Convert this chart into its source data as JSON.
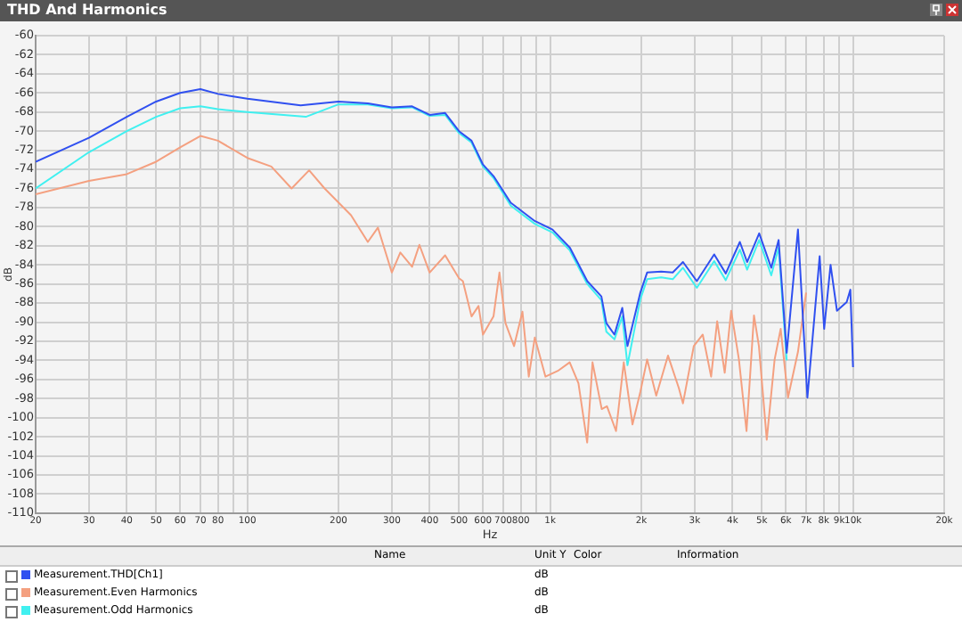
{
  "chart_data": {
    "type": "line",
    "title": "THD And Harmonics",
    "xlabel": "Hz",
    "ylabel": "dB",
    "log": "x",
    "grid": true,
    "legend": "bottom",
    "xlim": [
      20,
      20000
    ],
    "xticks": [
      20,
      30,
      40,
      50,
      60,
      70,
      80,
      {
        "value": 90,
        "label": null
      },
      100,
      200,
      300,
      400,
      500,
      600,
      700,
      800,
      {
        "value": 900,
        "label": null
      },
      {
        "value": 1000,
        "label": "1k"
      },
      {
        "value": 2000,
        "label": "2k"
      },
      {
        "value": 3000,
        "label": "3k"
      },
      {
        "value": 4000,
        "label": "4k"
      },
      {
        "value": 5000,
        "label": "5k"
      },
      {
        "value": 6000,
        "label": "6k"
      },
      {
        "value": 7000,
        "label": "7k"
      },
      {
        "value": 8000,
        "label": "8k"
      },
      {
        "value": 9000,
        "label": "9k"
      },
      {
        "value": 10000,
        "label": "10k"
      },
      {
        "value": 20000,
        "label": "20k"
      }
    ],
    "ylim": [
      -110,
      -60
    ],
    "yticks": [
      -110,
      -108,
      -106,
      -104,
      -102,
      -100,
      -98,
      -96,
      -94,
      -92,
      -90,
      -88,
      -86,
      -84,
      -82,
      -80,
      -78,
      -76,
      -74,
      -72,
      -70,
      -68,
      -66,
      -64,
      -62,
      -60
    ],
    "annotations": [
      "Name",
      "Unit Y",
      "Color",
      "Information",
      "dB"
    ],
    "series": [
      {
        "name": "Measurement.THD[Ch1]",
        "color": "#3050f0",
        "x": [
          20,
          30,
          40,
          50,
          60,
          70,
          80,
          100,
          150,
          200,
          250,
          300,
          350,
          400,
          450,
          500,
          550,
          600,
          650,
          741,
          889,
          1018,
          1162,
          1326,
          1476,
          1533,
          1630,
          1730,
          1800,
          1985,
          2090,
          2325,
          2540,
          2745,
          3050,
          3480,
          3800,
          4230,
          4470,
          4900,
          5370,
          5680,
          6040,
          6580,
          7070,
          7760,
          8030,
          8430,
          8850,
          9530,
          9800,
          10000
        ],
        "values": [
          -73.2,
          -70.7,
          -68.5,
          -66.9,
          -66.0,
          -65.6,
          -66.1,
          -66.6,
          -67.3,
          -66.9,
          -67.1,
          -67.5,
          -67.4,
          -68.3,
          -68.1,
          -70.0,
          -71.0,
          -73.5,
          -74.7,
          -77.5,
          -79.4,
          -80.3,
          -82.2,
          -85.7,
          -87.3,
          -90.1,
          -91.3,
          -88.5,
          -92.5,
          -86.9,
          -84.8,
          -84.7,
          -84.8,
          -83.7,
          -85.7,
          -82.9,
          -84.9,
          -81.6,
          -83.7,
          -80.7,
          -84.3,
          -81.4,
          -93.2,
          -80.3,
          -97.9,
          -83.1,
          -90.7,
          -84.0,
          -88.8,
          -87.9,
          -86.6,
          -94.7
        ]
      },
      {
        "name": "Measurement.Even Harmonics",
        "color": "#f4a080",
        "x": [
          20,
          30,
          40,
          50,
          60,
          70,
          80,
          100,
          120,
          140,
          160,
          180,
          220,
          250,
          270,
          300,
          320,
          350,
          370,
          400,
          450,
          500,
          515,
          550,
          580,
          600,
          650,
          680,
          712,
          760,
          810,
          850,
          890,
          965,
          1060,
          1160,
          1240,
          1325,
          1380,
          1480,
          1540,
          1650,
          1750,
          1870,
          1985,
          2090,
          2240,
          2450,
          2660,
          2745,
          2980,
          3190,
          3400,
          3560,
          3770,
          3960,
          4200,
          4450,
          4710,
          4890,
          5190,
          5510,
          5770,
          6100,
          6580,
          7000
        ],
        "values": [
          -76.6,
          -75.2,
          -74.5,
          -73.2,
          -71.7,
          -70.5,
          -71.0,
          -72.8,
          -73.7,
          -76.0,
          -74.1,
          -76.0,
          -78.8,
          -81.6,
          -80.1,
          -84.8,
          -82.7,
          -84.2,
          -81.9,
          -84.8,
          -83.0,
          -85.4,
          -85.7,
          -89.4,
          -88.3,
          -91.3,
          -89.4,
          -84.8,
          -90.1,
          -92.5,
          -88.9,
          -95.7,
          -91.6,
          -95.7,
          -95.1,
          -94.2,
          -96.4,
          -102.6,
          -94.2,
          -99.1,
          -98.8,
          -101.4,
          -94.2,
          -100.7,
          -97.3,
          -93.9,
          -97.7,
          -93.5,
          -96.9,
          -98.5,
          -92.5,
          -91.3,
          -95.7,
          -89.9,
          -95.3,
          -88.8,
          -93.9,
          -101.4,
          -89.3,
          -92.5,
          -102.3,
          -93.9,
          -90.7,
          -97.9,
          -93.1,
          -86.9
        ]
      },
      {
        "name": "Measurement.Odd Harmonics",
        "color": "#40f0f0",
        "x": [
          20,
          30,
          40,
          50,
          60,
          70,
          80,
          100,
          156,
          200,
          250,
          300,
          350,
          400,
          450,
          500,
          550,
          600,
          650,
          741,
          889,
          1018,
          1162,
          1326,
          1476,
          1533,
          1630,
          1730,
          1800,
          1985,
          2090,
          2325,
          2540,
          2745,
          3050,
          3480,
          3800,
          4230,
          4470,
          4900,
          5370,
          5680,
          6040
        ],
        "values": [
          -76.0,
          -72.2,
          -70.0,
          -68.5,
          -67.6,
          -67.4,
          -67.7,
          -68.0,
          -68.5,
          -67.2,
          -67.2,
          -67.6,
          -67.5,
          -68.4,
          -68.3,
          -70.2,
          -71.2,
          -73.7,
          -74.9,
          -77.8,
          -79.7,
          -80.6,
          -82.5,
          -86.0,
          -87.7,
          -91.0,
          -91.8,
          -89.4,
          -94.5,
          -87.6,
          -85.5,
          -85.3,
          -85.5,
          -84.3,
          -86.4,
          -83.6,
          -85.6,
          -82.4,
          -84.5,
          -81.4,
          -85.1,
          -82.2,
          -94.0
        ]
      }
    ]
  }
}
